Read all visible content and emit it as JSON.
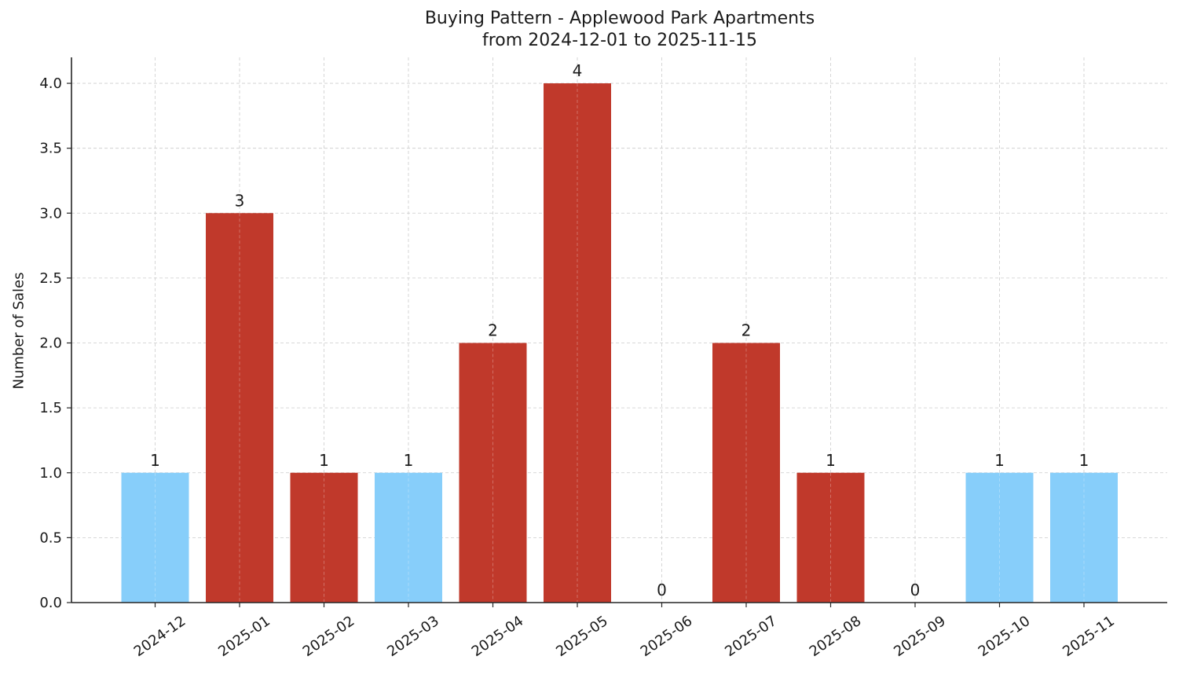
{
  "chart": {
    "title_line1": "Buying Pattern - Applewood Park Apartments",
    "title_line2": "from 2024-12-01 to 2025-11-15",
    "ylabel": "Number of Sales"
  },
  "colors": {
    "high": "#c0392b",
    "low": "#87cefa",
    "grid": "#cccccc",
    "axis": "#262626"
  },
  "chart_data": {
    "type": "bar",
    "title": "Buying Pattern - Applewood Park Apartments\nfrom 2024-12-01 to 2025-11-15",
    "xlabel": "",
    "ylabel": "Number of Sales",
    "categories": [
      "2024-12",
      "2025-01",
      "2025-02",
      "2025-03",
      "2025-04",
      "2025-05",
      "2025-06",
      "2025-07",
      "2025-08",
      "2025-09",
      "2025-10",
      "2025-11"
    ],
    "values": [
      1,
      3,
      1,
      1,
      2,
      4,
      0,
      2,
      1,
      0,
      1,
      1
    ],
    "bar_colors": [
      "#87cefa",
      "#c0392b",
      "#c0392b",
      "#87cefa",
      "#c0392b",
      "#c0392b",
      "#c0392b",
      "#c0392b",
      "#c0392b",
      "#c0392b",
      "#87cefa",
      "#87cefa"
    ],
    "data_labels": [
      "1",
      "3",
      "1",
      "1",
      "2",
      "4",
      "0",
      "2",
      "1",
      "0",
      "1",
      "1"
    ],
    "yticks": [
      "0.0",
      "0.5",
      "1.0",
      "1.5",
      "2.0",
      "2.5",
      "3.0",
      "3.5",
      "4.0"
    ],
    "ylim": [
      0,
      4.2
    ],
    "grid": true,
    "grid_style": "dashed",
    "legend": null
  }
}
